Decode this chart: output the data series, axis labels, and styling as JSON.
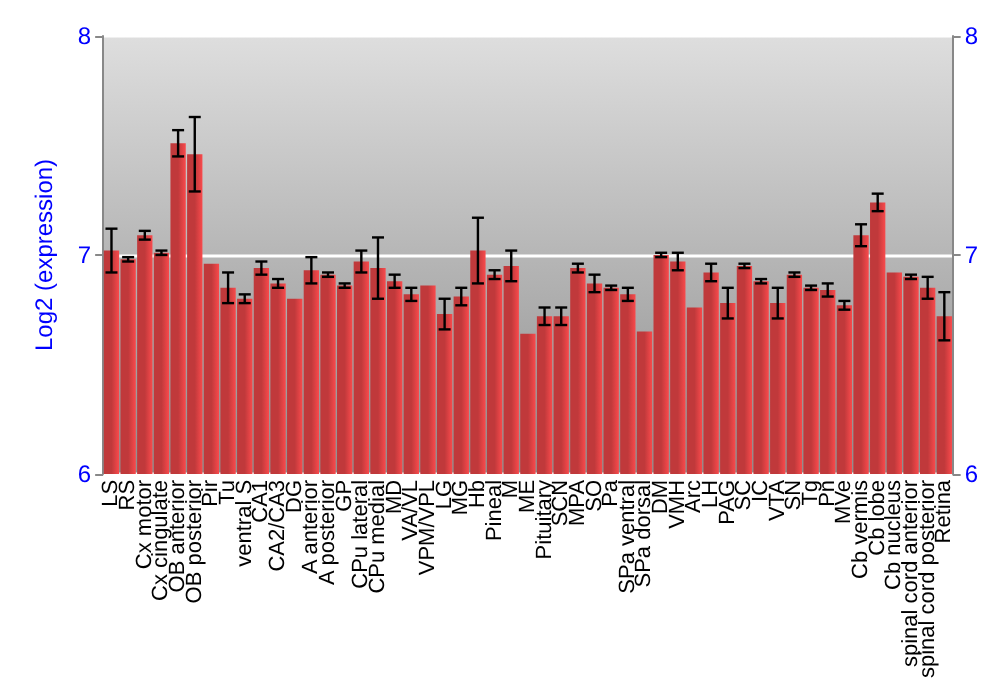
{
  "chart_data": {
    "type": "bar",
    "ylabel": "Log2 (expression)",
    "categories": [
      "LS",
      "RS",
      "Cx motor",
      "Cx cingulate",
      "OB anterior",
      "OB posterior",
      "Pir",
      "Tu",
      "ventral S",
      "CA1",
      "CA2/CA3",
      "DG",
      "A anterior",
      "A posterior",
      "GP",
      "CPu lateral",
      "CPu medial",
      "MD",
      "VA/VL",
      "VPM/VPL",
      "LG",
      "MG",
      "Hb",
      "Pineal",
      "M",
      "ME",
      "Pituitary",
      "SCN",
      "MPA",
      "SO",
      "Pa",
      "SPa ventral",
      "SPa dorsal",
      "DM",
      "VMH",
      "Arc",
      "LH",
      "PAG",
      "SC",
      "IC",
      "VTA",
      "SN",
      "Tg",
      "Pn",
      "MVe",
      "Cb vermis",
      "Cb lobe",
      "Cb nucleus",
      "spinal cord anterior",
      "spinal cord posterior",
      "Retina"
    ],
    "values": [
      7.02,
      6.98,
      7.09,
      7.01,
      7.51,
      7.46,
      6.96,
      6.85,
      6.8,
      6.94,
      6.87,
      6.8,
      6.93,
      6.91,
      6.86,
      6.97,
      6.94,
      6.88,
      6.82,
      6.86,
      6.73,
      6.81,
      7.02,
      6.91,
      6.95,
      6.64,
      6.72,
      6.72,
      6.94,
      6.87,
      6.85,
      6.82,
      6.65,
      7.0,
      6.97,
      6.76,
      6.92,
      6.78,
      6.95,
      6.88,
      6.78,
      6.91,
      6.85,
      6.84,
      6.77,
      7.09,
      7.24,
      6.92,
      6.9,
      6.85,
      6.72
    ],
    "errors": [
      0.1,
      0.01,
      0.02,
      0.01,
      0.06,
      0.17,
      null,
      0.07,
      0.02,
      0.03,
      0.02,
      null,
      0.06,
      0.01,
      0.01,
      0.05,
      0.14,
      0.03,
      0.03,
      null,
      0.07,
      0.04,
      0.15,
      0.02,
      0.07,
      null,
      0.04,
      0.04,
      0.02,
      0.04,
      0.01,
      0.03,
      null,
      0.01,
      0.04,
      null,
      0.04,
      0.07,
      0.01,
      0.01,
      0.07,
      0.01,
      0.01,
      0.03,
      0.02,
      0.05,
      0.04,
      null,
      0.01,
      0.05,
      0.11
    ],
    "color": "#c0393b",
    "ylim": [
      6,
      8
    ],
    "yticks": [
      6,
      7,
      8
    ],
    "y2lim": [
      6,
      8
    ],
    "y2ticks": [
      6,
      7,
      8
    ],
    "grid": "y"
  }
}
